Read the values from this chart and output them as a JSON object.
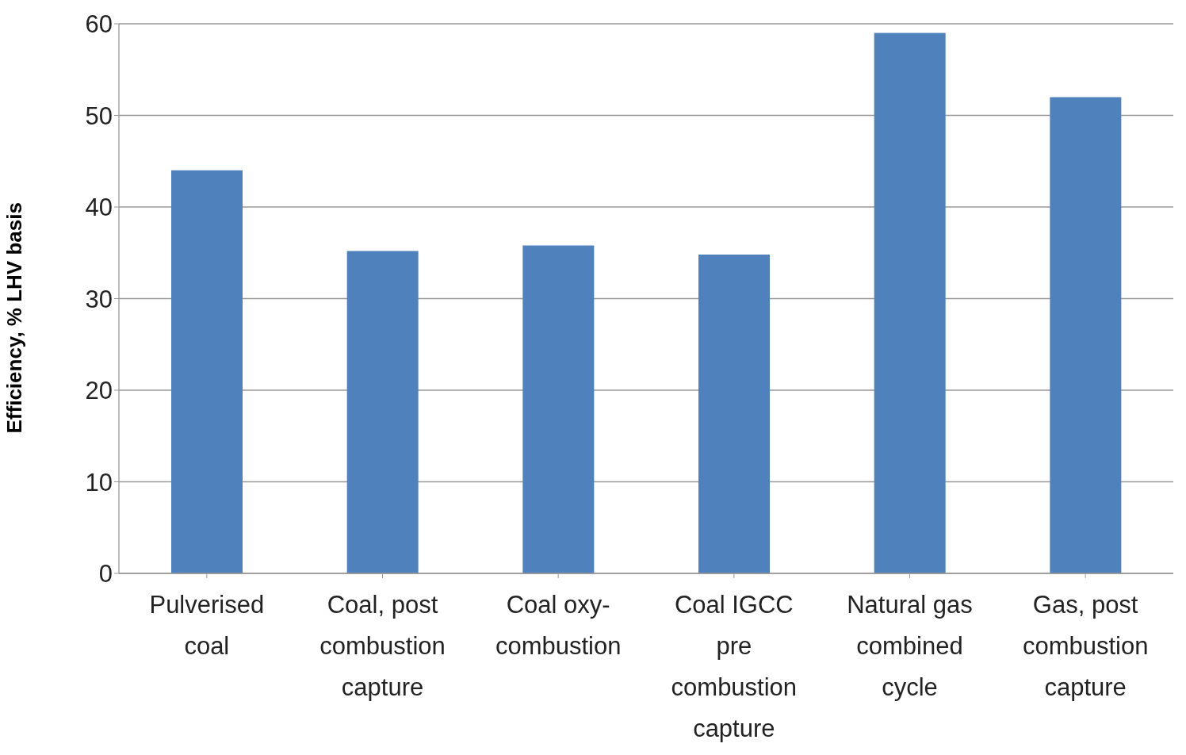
{
  "chart_data": {
    "type": "bar",
    "ylabel": "Efficiency, % LHV basis",
    "categories": [
      "Pulverised coal",
      "Coal, post combustion capture",
      "Coal oxy-combustion",
      "Coal IGCC pre combustion capture",
      "Natural gas combined cycle",
      "Gas, post combustion capture"
    ],
    "values": [
      44,
      35.2,
      35.8,
      34.8,
      59,
      52
    ],
    "color": "#4f81bd",
    "ylim": [
      0,
      60
    ],
    "yticks": [
      0,
      10,
      20,
      30,
      40,
      50,
      60
    ],
    "grid": "y",
    "legend": false
  }
}
